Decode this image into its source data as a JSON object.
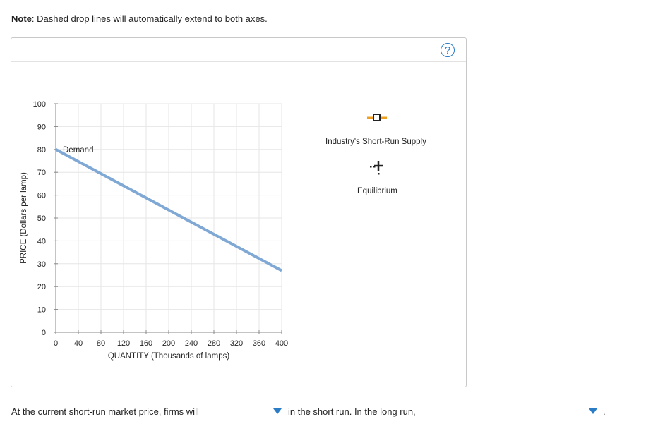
{
  "note": {
    "label": "Note",
    "text": ": Dashed drop lines will automatically extend to both axes."
  },
  "panel": {
    "help_icon": "?"
  },
  "legend": {
    "supply_label": "Industry's Short-Run Supply",
    "equilibrium_label": "Equilibrium",
    "supply_color": "#f0a020",
    "equilibrium_color": "#222222"
  },
  "chart_data": {
    "type": "line",
    "title": "",
    "xlabel": "QUANTITY (Thousands of lamps)",
    "ylabel": "PRICE (Dollars per lamp)",
    "xlim": [
      0,
      400
    ],
    "ylim": [
      0,
      100
    ],
    "x_ticks": [
      0,
      40,
      80,
      120,
      160,
      200,
      240,
      280,
      320,
      360,
      400
    ],
    "y_ticks": [
      0,
      10,
      20,
      30,
      40,
      50,
      60,
      70,
      80,
      90,
      100
    ],
    "grid": true,
    "series": [
      {
        "name": "Demand",
        "color": "#7fa8d4",
        "x": [
          0,
          400
        ],
        "y": [
          80,
          27
        ]
      }
    ],
    "annotations": [
      {
        "text": "Demand",
        "x": 10,
        "y": 80
      }
    ],
    "legend_position": "right",
    "legend_entries": [
      "Industry's Short-Run Supply",
      "Equilibrium"
    ]
  },
  "question": {
    "part1": "At the current short-run market price, firms will",
    "part2": "in the short run. In the long run,",
    "part3": ".",
    "dropdown1_value": "",
    "dropdown2_value": ""
  },
  "colors": {
    "accent": "#2a7cc7",
    "grid": "#e6e6e6",
    "axis": "#888888"
  }
}
